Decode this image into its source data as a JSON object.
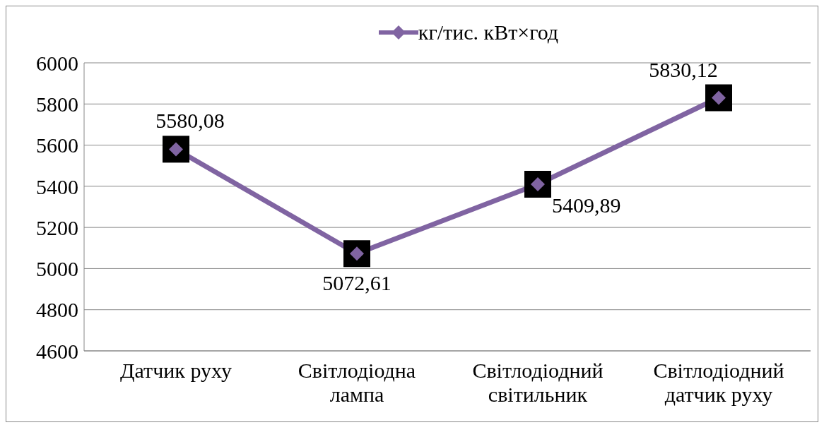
{
  "chart_data": {
    "type": "line",
    "categories": [
      "Датчик руху",
      "Світлодіодна лампа",
      "Світлодіодний світильник",
      "Світлодіодний датчик руху"
    ],
    "series": [
      {
        "name": "кг/тис. кВт×год",
        "color": "#8064a2",
        "values": [
          5580.08,
          5072.61,
          5409.89,
          5830.12
        ],
        "value_labels": [
          "5580,08",
          "5072,61",
          "5409,89",
          "5830,12"
        ]
      }
    ],
    "ylim": [
      4600,
      6000
    ],
    "yticks": [
      4600,
      4800,
      5000,
      5200,
      5400,
      5600,
      5800,
      6000
    ],
    "grid": "y",
    "legend": "top",
    "marker": "diamond",
    "line_style": "solid"
  }
}
